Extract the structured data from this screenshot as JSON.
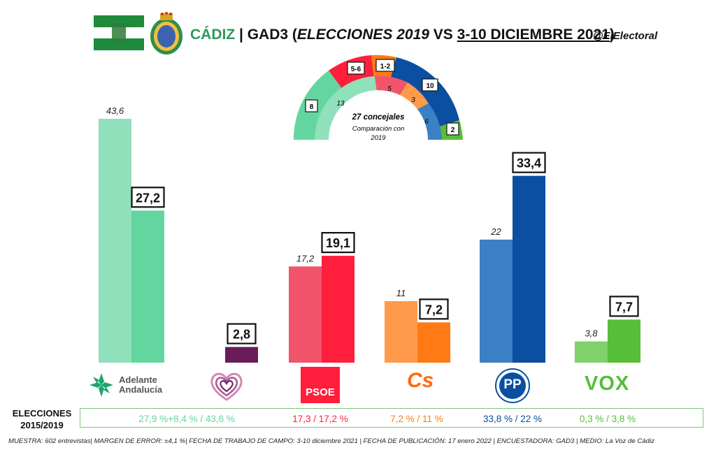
{
  "header": {
    "city": "CÁDIZ",
    "sep": " | GAD3 (",
    "elections": "ELECCIONES 2019",
    "vs": " VS ",
    "dates": "3-10 DICIEMBRE 2021",
    "close": ")",
    "handle": "@ElElectoral"
  },
  "hemicycle": {
    "title": "27 concejales",
    "subtitle_1": "Comparación con",
    "subtitle_2": "2019",
    "outer_labels": [
      "8",
      "5-6",
      "1-2",
      "10",
      "2"
    ],
    "inner_labels": [
      "13",
      "5",
      "3",
      "6"
    ]
  },
  "chart_data": {
    "type": "bar",
    "categories": [
      "Adelante Andalucía",
      "Podemos",
      "PSOE",
      "Cs",
      "PP",
      "VOX"
    ],
    "series": [
      {
        "name": "2019",
        "values": [
          43.6,
          null,
          17.2,
          11,
          22,
          3.8
        ]
      },
      {
        "name": "3-10 diciembre 2021",
        "values": [
          27.2,
          2.8,
          19.1,
          7.2,
          33.4,
          7.7
        ]
      }
    ],
    "labels_2019": [
      "43,6",
      "",
      "17,2",
      "11",
      "22",
      "3,8"
    ],
    "labels_2021": [
      "27,2",
      "2,8",
      "19,1",
      "7,2",
      "33,4",
      "7,7"
    ],
    "colors_2019": [
      "#8fe0bb",
      "",
      "#f2546c",
      "#ff9a4a",
      "#3b7fc4",
      "#7fd16a"
    ],
    "colors_2021": [
      "#63d6a0",
      "#6a1b5a",
      "#ff1e3c",
      "#ff7a14",
      "#0a4fa0",
      "#56be38"
    ],
    "ylim": [
      0,
      45
    ]
  },
  "logos": {
    "adelante_1": "Adelante",
    "adelante_2": "Andalucía",
    "psoe": "PSOE",
    "cs": "Cs",
    "pp": "PP",
    "vox": "VOX"
  },
  "results": {
    "label_1": "ELECCIONES",
    "label_2": "2015/2019",
    "items": [
      {
        "text": "27,9 %+8,4 % / 43,6 %",
        "color": "#63d6a0"
      },
      {
        "text": "17,3 / 17,2 %",
        "color": "#ff1e3c"
      },
      {
        "text": "7,2 % / 11 %",
        "color": "#ff7a14"
      },
      {
        "text": "33,8 % / 22 %",
        "color": "#0a4fa0"
      },
      {
        "text": "0,3 % / 3,8 %",
        "color": "#56be38"
      }
    ]
  },
  "footnote": "MUESTRA: 602 entrevistas| MARGEN DE ERROR: ±4,1 %| FECHA DE TRABAJO DE CAMPO: 3-10 diciembre 2021 | FECHA DE PUBLICACIÓN: 17 enero 2022 | ENCUESTADORA: GAD3 | MEDIO: La Voz de Cádiz"
}
